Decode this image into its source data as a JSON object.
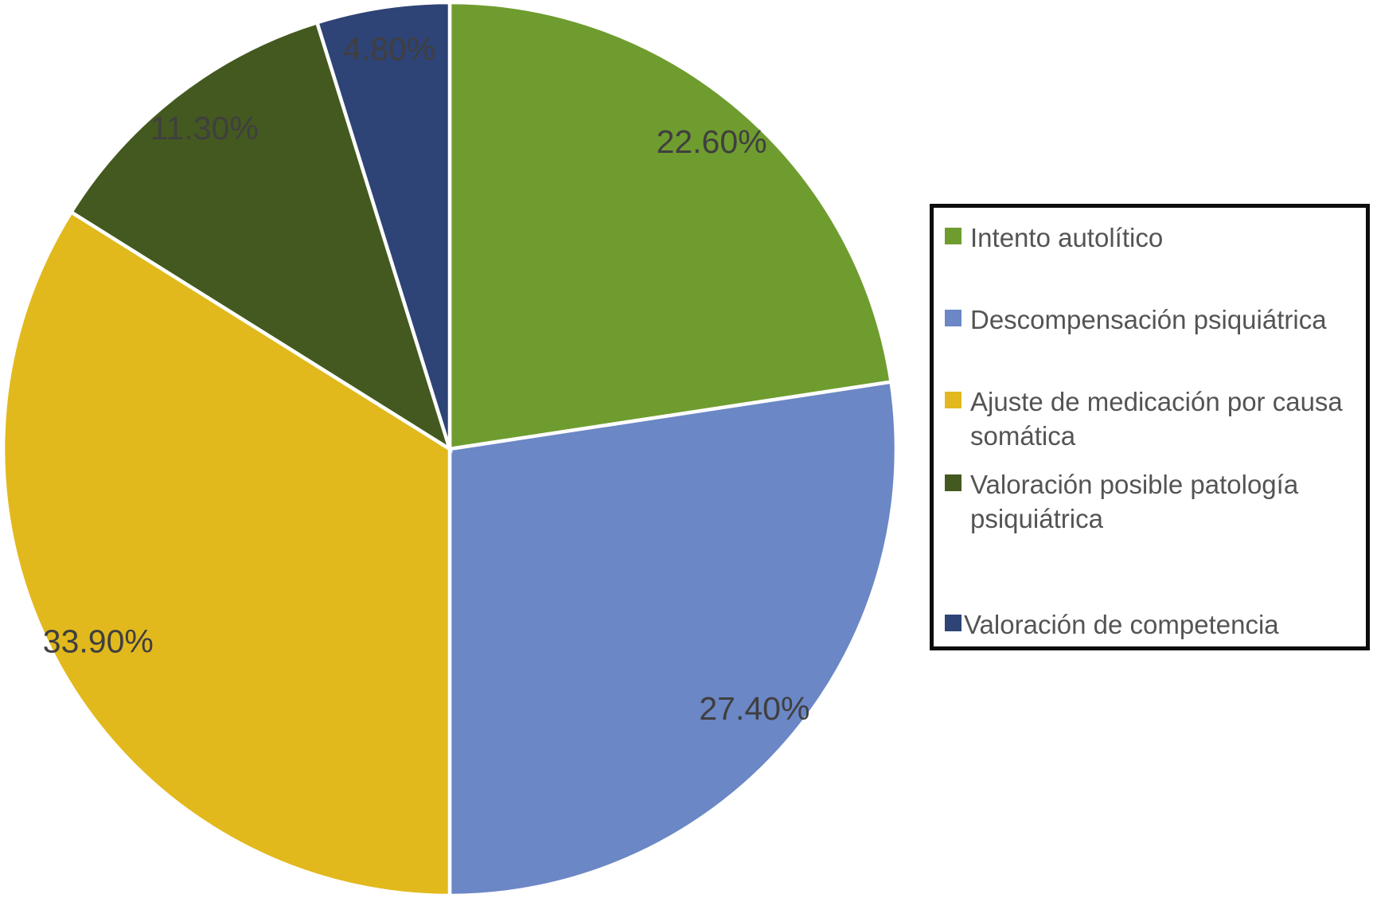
{
  "chart_data": {
    "type": "pie",
    "title": "",
    "categories": [
      "Intento autolítico",
      "Descompensación psiquiátrica",
      "Ajuste de medicación por causa somática",
      "Valoración posible patología psiquiátrica",
      "Valoración de competencia"
    ],
    "values": [
      22.6,
      27.4,
      33.9,
      11.3,
      4.8
    ],
    "slice_labels": [
      "22.60%",
      "27.40%",
      "33.90%",
      "11.30%",
      "4.80%"
    ],
    "colors": [
      "#6F9C2F",
      "#6B87C5",
      "#E2B91D",
      "#44591F",
      "#2E4376"
    ],
    "start_angle_deg": 0,
    "direction": "clockwise",
    "separator_color": "#FFFFFF",
    "slice_label_color": "#3F3F3F",
    "legend_position": "right",
    "legend_border_color": "#0D0D0D",
    "legend_text_color": "#545454",
    "background_color": "#FFFFFF"
  }
}
